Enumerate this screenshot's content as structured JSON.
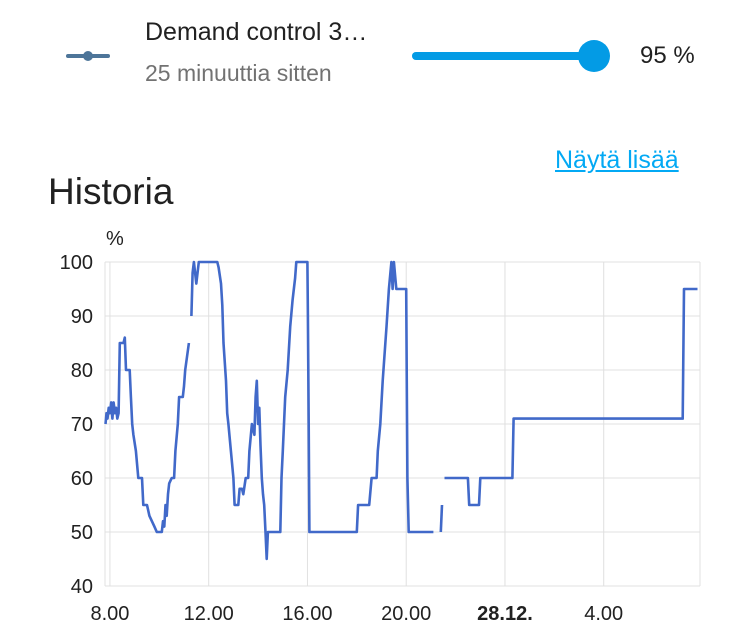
{
  "entity": {
    "icon": "line-chart-icon",
    "name": "Demand control 3…",
    "last_changed": "25 minuuttia sitten",
    "value": 95,
    "value_text": "95 %",
    "accent_color": "#039be5"
  },
  "history": {
    "title": "Historia",
    "show_more": "Näytä lisää"
  },
  "chart_data": {
    "type": "line",
    "ylabel": "%",
    "ylim": [
      40,
      100
    ],
    "yticks": [
      40,
      50,
      60,
      70,
      80,
      90,
      100
    ],
    "x_range_hours": [
      7.8,
      31.9
    ],
    "xticks": [
      {
        "label": "8.00",
        "hour": 8,
        "bold": false
      },
      {
        "label": "12.00",
        "hour": 12,
        "bold": false
      },
      {
        "label": "16.00",
        "hour": 16,
        "bold": false
      },
      {
        "label": "20.00",
        "hour": 20,
        "bold": false
      },
      {
        "label": "28.12.",
        "hour": 24,
        "bold": true
      },
      {
        "label": "4.00",
        "hour": 28,
        "bold": false
      }
    ],
    "grid": true,
    "series": [
      {
        "color": "#4169c9",
        "segments": [
          [
            [
              7.82,
              70
            ],
            [
              7.86,
              72
            ],
            [
              7.9,
              71
            ],
            [
              7.95,
              73
            ],
            [
              8.0,
              72
            ],
            [
              8.05,
              74
            ],
            [
              8.1,
              71
            ],
            [
              8.15,
              74
            ],
            [
              8.2,
              72
            ],
            [
              8.25,
              73
            ],
            [
              8.3,
              71
            ],
            [
              8.35,
              72
            ],
            [
              8.4,
              85
            ],
            [
              8.55,
              85
            ],
            [
              8.6,
              86
            ],
            [
              8.65,
              80
            ],
            [
              8.8,
              80
            ],
            [
              8.85,
              75
            ],
            [
              8.9,
              70
            ],
            [
              8.95,
              68
            ],
            [
              9.05,
              65
            ],
            [
              9.15,
              60
            ],
            [
              9.3,
              60
            ],
            [
              9.35,
              55
            ],
            [
              9.5,
              55
            ],
            [
              9.55,
              54
            ],
            [
              9.6,
              53
            ],
            [
              9.7,
              52
            ],
            [
              9.8,
              51
            ],
            [
              9.9,
              50
            ],
            [
              10.1,
              50
            ],
            [
              10.15,
              52
            ],
            [
              10.2,
              51
            ],
            [
              10.25,
              55
            ],
            [
              10.3,
              53
            ],
            [
              10.35,
              57
            ],
            [
              10.4,
              59
            ],
            [
              10.5,
              60
            ],
            [
              10.6,
              60
            ],
            [
              10.65,
              65
            ],
            [
              10.75,
              70
            ],
            [
              10.8,
              75
            ],
            [
              10.95,
              75
            ],
            [
              11.0,
              77
            ],
            [
              11.05,
              80
            ],
            [
              11.2,
              85
            ]
          ],
          [
            [
              11.3,
              90
            ],
            [
              11.35,
              98
            ],
            [
              11.4,
              100
            ],
            [
              11.5,
              96
            ],
            [
              11.6,
              100
            ],
            [
              12.35,
              100
            ],
            [
              12.4,
              99
            ],
            [
              12.5,
              96
            ],
            [
              12.55,
              92
            ],
            [
              12.6,
              85
            ],
            [
              12.7,
              78
            ],
            [
              12.75,
              72
            ],
            [
              12.8,
              70
            ],
            [
              12.9,
              65
            ],
            [
              13.0,
              60
            ],
            [
              13.05,
              55
            ],
            [
              13.2,
              55
            ],
            [
              13.25,
              58
            ],
            [
              13.35,
              58
            ],
            [
              13.4,
              57
            ],
            [
              13.5,
              60
            ],
            [
              13.6,
              60
            ],
            [
              13.65,
              65
            ],
            [
              13.75,
              70
            ],
            [
              13.85,
              68
            ],
            [
              13.9,
              75
            ],
            [
              13.95,
              78
            ],
            [
              14.0,
              70
            ],
            [
              14.05,
              73
            ],
            [
              14.1,
              66
            ],
            [
              14.15,
              60
            ],
            [
              14.2,
              57
            ],
            [
              14.25,
              55
            ],
            [
              14.3,
              50
            ],
            [
              14.35,
              45
            ],
            [
              14.4,
              50
            ],
            [
              14.9,
              50
            ],
            [
              14.95,
              60
            ],
            [
              15.0,
              65
            ],
            [
              15.1,
              75
            ],
            [
              15.2,
              80
            ],
            [
              15.3,
              88
            ],
            [
              15.4,
              93
            ],
            [
              15.5,
              97
            ],
            [
              15.55,
              100
            ],
            [
              16.0,
              100
            ],
            [
              16.02,
              90
            ],
            [
              16.05,
              70
            ],
            [
              16.08,
              50
            ],
            [
              18.0,
              50
            ],
            [
              18.05,
              55
            ],
            [
              18.5,
              55
            ],
            [
              18.6,
              60
            ],
            [
              18.8,
              60
            ],
            [
              18.85,
              65
            ],
            [
              18.95,
              70
            ],
            [
              19.05,
              78
            ],
            [
              19.2,
              88
            ],
            [
              19.3,
              95
            ],
            [
              19.4,
              100
            ],
            [
              19.45,
              95
            ],
            [
              19.5,
              100
            ],
            [
              19.6,
              95
            ],
            [
              20.0,
              95
            ],
            [
              20.02,
              80
            ],
            [
              20.05,
              60
            ],
            [
              20.1,
              50
            ],
            [
              21.1,
              50
            ]
          ],
          [
            [
              21.4,
              50
            ],
            [
              21.45,
              55
            ]
          ],
          [
            [
              21.55,
              60
            ],
            [
              22.5,
              60
            ],
            [
              22.55,
              55
            ],
            [
              22.95,
              55
            ],
            [
              23.0,
              60
            ],
            [
              24.3,
              60
            ],
            [
              24.35,
              71
            ],
            [
              31.2,
              71
            ],
            [
              31.25,
              95
            ],
            [
              31.8,
              95
            ]
          ]
        ]
      }
    ]
  }
}
